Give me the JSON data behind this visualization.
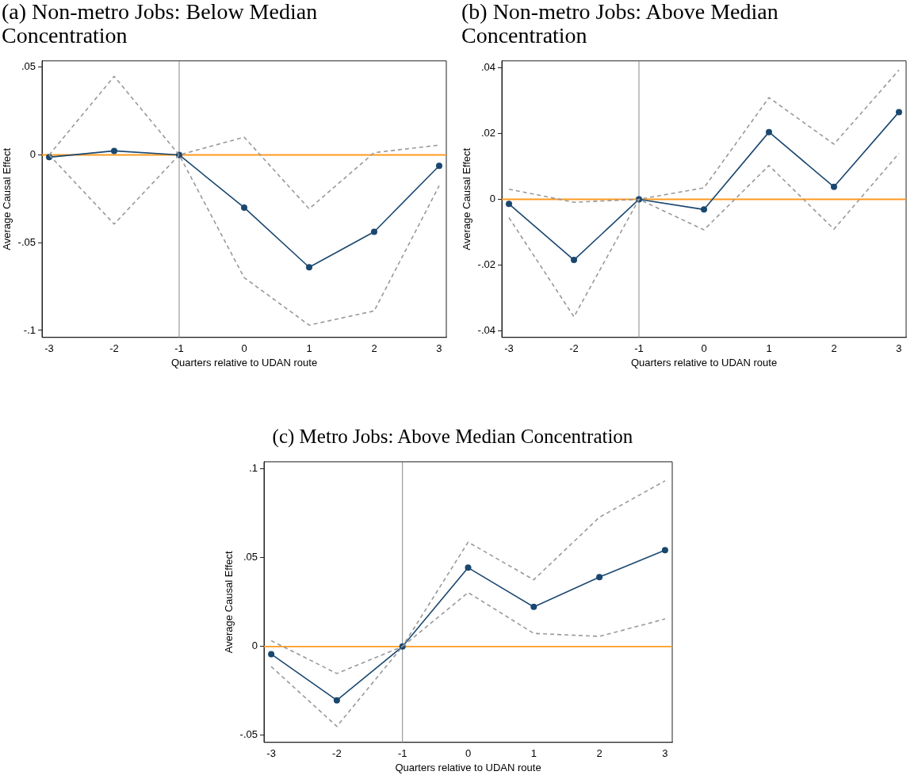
{
  "chart_data": [
    {
      "type": "line",
      "title": "(a) Non-metro Jobs: Below Median Concentration",
      "xlabel": "Quarters relative to UDAN route",
      "ylabel": "Average Causal Effect",
      "x": [
        -3,
        -2,
        -1,
        0,
        1,
        2,
        3
      ],
      "xlim": [
        -3.11,
        3.11
      ],
      "xticks": [
        -3,
        -2,
        -1,
        0,
        1,
        2,
        3
      ],
      "ylim": [
        -0.104,
        0.0536
      ],
      "yticks": [
        {
          "value": -0.1,
          "label": "-.1"
        },
        {
          "value": -0.05,
          "label": "-.05"
        },
        {
          "value": 0,
          "label": "0"
        },
        {
          "value": 0.05,
          "label": ".05"
        }
      ],
      "grid": false,
      "legend": false,
      "series": [
        {
          "color": "#999999",
          "line_style": "dashed",
          "marker": "none",
          "values": [
            0,
            0.0448,
            0,
            0.0101,
            -0.0307,
            0.0013,
            0.0056
          ]
        },
        {
          "color": "#999999",
          "line_style": "dashed",
          "marker": "none",
          "values": [
            0,
            -0.0394,
            0,
            -0.0699,
            -0.097,
            -0.0889,
            -0.0176
          ]
        },
        {
          "color": "#1a476f",
          "line_style": "solid",
          "marker": "circle",
          "values": [
            -0.0013,
            0.0023,
            0,
            -0.03,
            -0.064,
            -0.0438,
            -0.0062
          ]
        }
      ],
      "ref_lines": [
        {
          "axis": "y",
          "value": 0,
          "color": "#ff9a1f"
        },
        {
          "axis": "x",
          "value": -1,
          "color": "#888888"
        }
      ]
    },
    {
      "type": "line",
      "title": "(b) Non-metro Jobs: Above Median Concentration",
      "xlabel": "Quarters relative to UDAN route",
      "ylabel": "Average Causal Effect",
      "x": [
        -3,
        -2,
        -1,
        0,
        1,
        2,
        3
      ],
      "xlim": [
        -3.11,
        3.11
      ],
      "xticks": [
        -3,
        -2,
        -1,
        0,
        1,
        2,
        3
      ],
      "ylim": [
        -0.0421,
        0.0422
      ],
      "yticks": [
        {
          "value": -0.04,
          "label": "-.04"
        },
        {
          "value": -0.02,
          "label": "-.02"
        },
        {
          "value": 0,
          "label": "0"
        },
        {
          "value": 0.02,
          "label": ".02"
        },
        {
          "value": 0.04,
          "label": ".04"
        }
      ],
      "grid": false,
      "legend": false,
      "series": [
        {
          "color": "#999999",
          "line_style": "dashed",
          "marker": "none",
          "values": [
            0.0031,
            -0.0009,
            0,
            0.0035,
            0.031,
            0.0168,
            0.0394
          ]
        },
        {
          "color": "#999999",
          "line_style": "dashed",
          "marker": "none",
          "values": [
            -0.0056,
            -0.0358,
            0,
            -0.0093,
            0.0103,
            -0.0091,
            0.014
          ]
        },
        {
          "color": "#1a476f",
          "line_style": "solid",
          "marker": "circle",
          "values": [
            -0.0014,
            -0.0185,
            0,
            -0.0031,
            0.0205,
            0.0038,
            0.0266
          ]
        }
      ],
      "ref_lines": [
        {
          "axis": "y",
          "value": 0,
          "color": "#ff9a1f"
        },
        {
          "axis": "x",
          "value": -1,
          "color": "#888888"
        }
      ]
    },
    {
      "type": "line",
      "title": "(c) Metro Jobs: Above Median Concentration",
      "xlabel": "Quarters relative to UDAN route",
      "ylabel": "Average Causal Effect",
      "x": [
        -3,
        -2,
        -1,
        0,
        1,
        2,
        3
      ],
      "xlim": [
        -3.11,
        3.11
      ],
      "xticks": [
        -3,
        -2,
        -1,
        0,
        1,
        2,
        3
      ],
      "ylim": [
        -0.054,
        0.104
      ],
      "yticks": [
        {
          "value": -0.05,
          "label": "-.05"
        },
        {
          "value": 0,
          "label": "0"
        },
        {
          "value": 0.05,
          "label": ".05"
        },
        {
          "value": 0.1,
          "label": ".1"
        }
      ],
      "grid": false,
      "legend": false,
      "series": [
        {
          "color": "#999999",
          "line_style": "dashed",
          "marker": "none",
          "values": [
            0.0033,
            -0.0152,
            0,
            0.0588,
            0.0376,
            0.0728,
            0.0933
          ]
        },
        {
          "color": "#999999",
          "line_style": "dashed",
          "marker": "none",
          "values": [
            -0.0113,
            -0.045,
            0,
            0.0304,
            0.0074,
            0.0057,
            0.0155
          ]
        },
        {
          "color": "#1a476f",
          "line_style": "solid",
          "marker": "circle",
          "values": [
            -0.0043,
            -0.0303,
            0,
            0.0444,
            0.0223,
            0.0391,
            0.0543
          ]
        }
      ],
      "ref_lines": [
        {
          "axis": "y",
          "value": 0,
          "color": "#ff9a1f"
        },
        {
          "axis": "x",
          "value": -1,
          "color": "#888888"
        }
      ]
    }
  ]
}
